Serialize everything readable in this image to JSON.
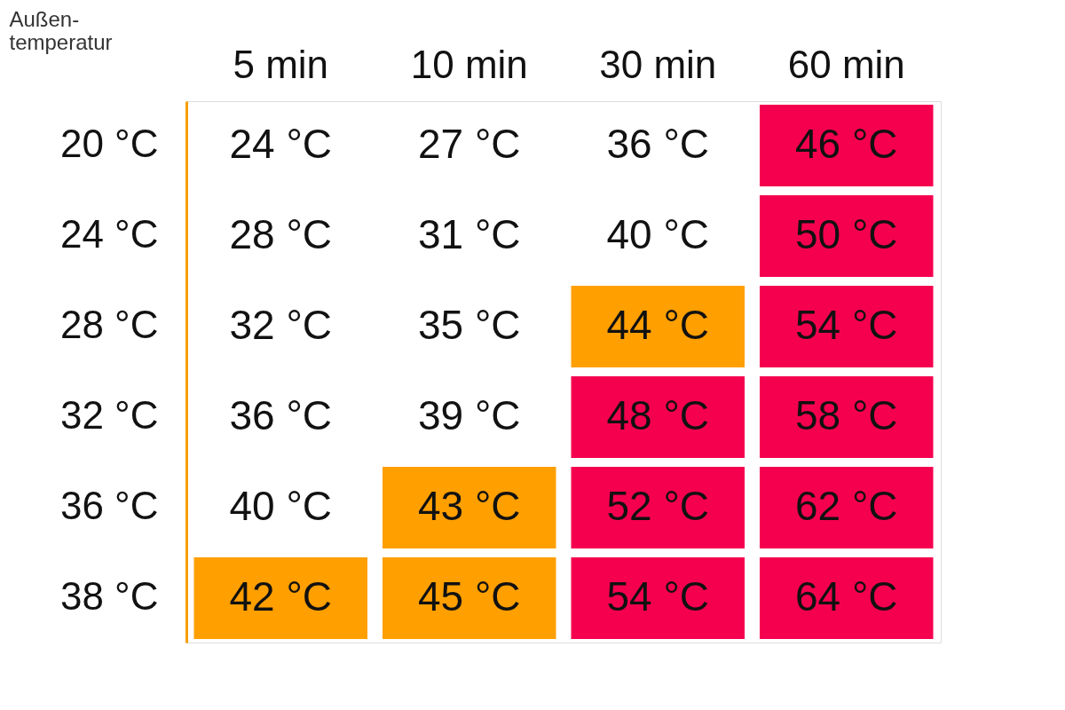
{
  "chart_data": {
    "type": "heatmap",
    "ylabel": "Außen-\ntemperatur",
    "categories": [
      "5 min",
      "10 min",
      "30 min",
      "60 min"
    ],
    "y_categories": [
      "20 °C",
      "24 °C",
      "28 °C",
      "32 °C",
      "36 °C",
      "38 °C"
    ],
    "cells": [
      [
        24,
        27,
        36,
        46
      ],
      [
        28,
        31,
        40,
        50
      ],
      [
        32,
        35,
        44,
        54
      ],
      [
        36,
        39,
        48,
        58
      ],
      [
        40,
        43,
        52,
        62
      ],
      [
        42,
        45,
        54,
        64
      ]
    ],
    "cell_labels": [
      [
        "24 °C",
        "27 °C",
        "36 °C",
        "46 °C"
      ],
      [
        "28 °C",
        "31 °C",
        "40 °C",
        "50 °C"
      ],
      [
        "32 °C",
        "35 °C",
        "44 °C",
        "54 °C"
      ],
      [
        "36 °C",
        "39 °C",
        "48 °C",
        "58 °C"
      ],
      [
        "40 °C",
        "43 °C",
        "52 °C",
        "62 °C"
      ],
      [
        "42 °C",
        "45 °C",
        "54 °C",
        "64 °C"
      ]
    ],
    "colors": [
      [
        "#ffffff",
        "#ffffff",
        "#ffffff",
        "#f5004f"
      ],
      [
        "#ffffff",
        "#ffffff",
        "#ffffff",
        "#f5004f"
      ],
      [
        "#ffffff",
        "#ffffff",
        "#ff9f00",
        "#f5004f"
      ],
      [
        "#ffffff",
        "#ffffff",
        "#f5004f",
        "#f5004f"
      ],
      [
        "#ffffff",
        "#ff9f00",
        "#f5004f",
        "#f5004f"
      ],
      [
        "#ff9f00",
        "#ff9f00",
        "#f5004f",
        "#f5004f"
      ]
    ]
  }
}
